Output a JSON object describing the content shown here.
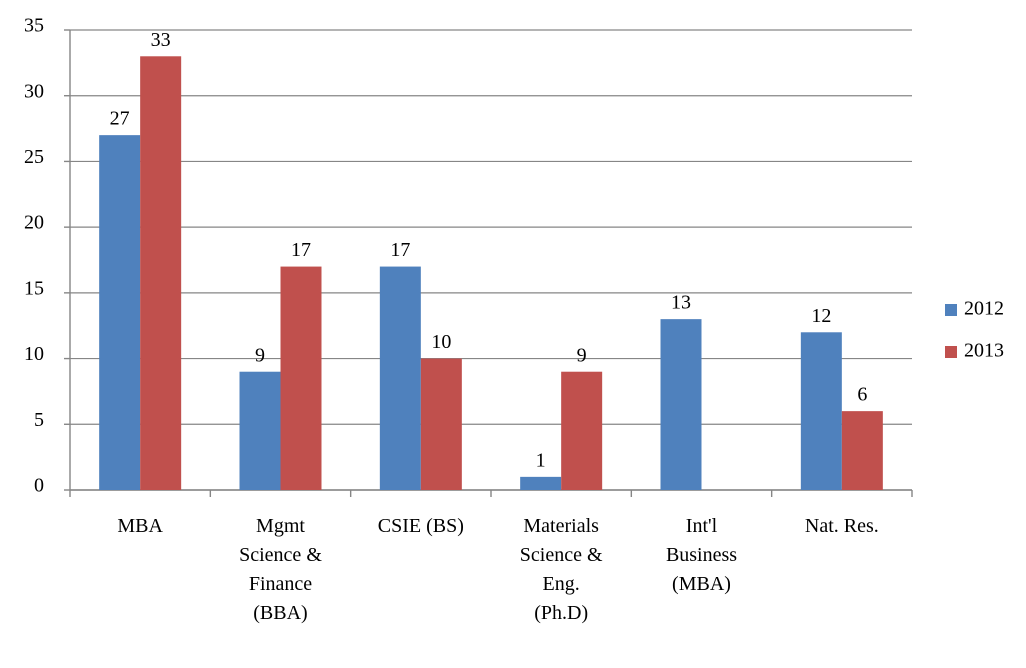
{
  "chart_data": {
    "type": "bar",
    "categories": [
      "MBA",
      "Mgmt\nScience &\nFinance\n(BBA)",
      "CSIE (BS)",
      "Materials\nScience &\nEng.\n(Ph.D)",
      "Int'l\nBusiness\n(MBA)",
      "Nat. Res."
    ],
    "series": [
      {
        "name": "2012",
        "color": "#4f81bd",
        "values": [
          27,
          9,
          17,
          1,
          13,
          12
        ]
      },
      {
        "name": "2013",
        "color": "#c0504d",
        "values": [
          33,
          17,
          10,
          9,
          null,
          6
        ]
      }
    ],
    "ylim": [
      0,
      35
    ],
    "yticks": [
      0,
      5,
      10,
      15,
      20,
      25,
      30,
      35
    ],
    "grid": true,
    "legend": "right"
  }
}
